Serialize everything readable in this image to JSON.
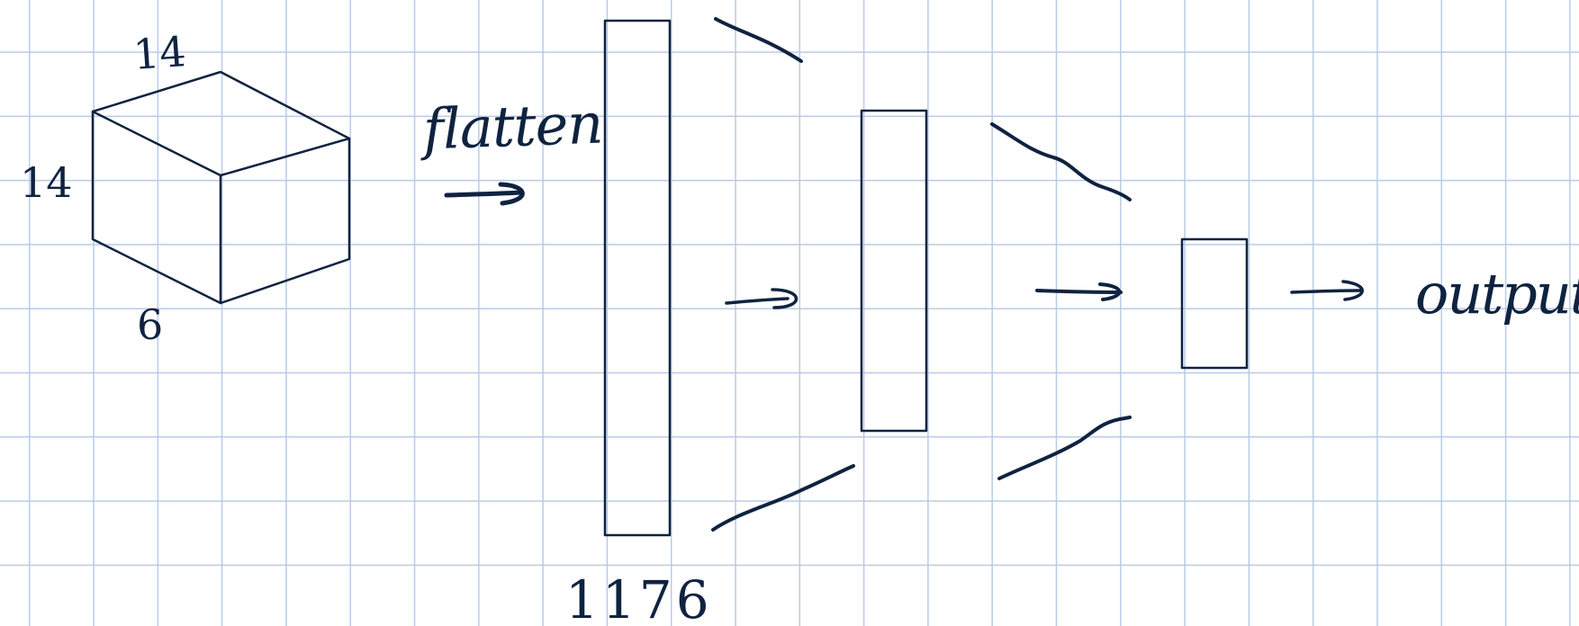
{
  "labels": {
    "cube_top": "14",
    "cube_left": "14",
    "cube_bottom": "6",
    "flatten": "flatten",
    "vector_size": "1176",
    "output": "output"
  },
  "colors": {
    "ink": "#0f2340",
    "grid": "#b9cbe6",
    "paper": "#ffffff"
  }
}
